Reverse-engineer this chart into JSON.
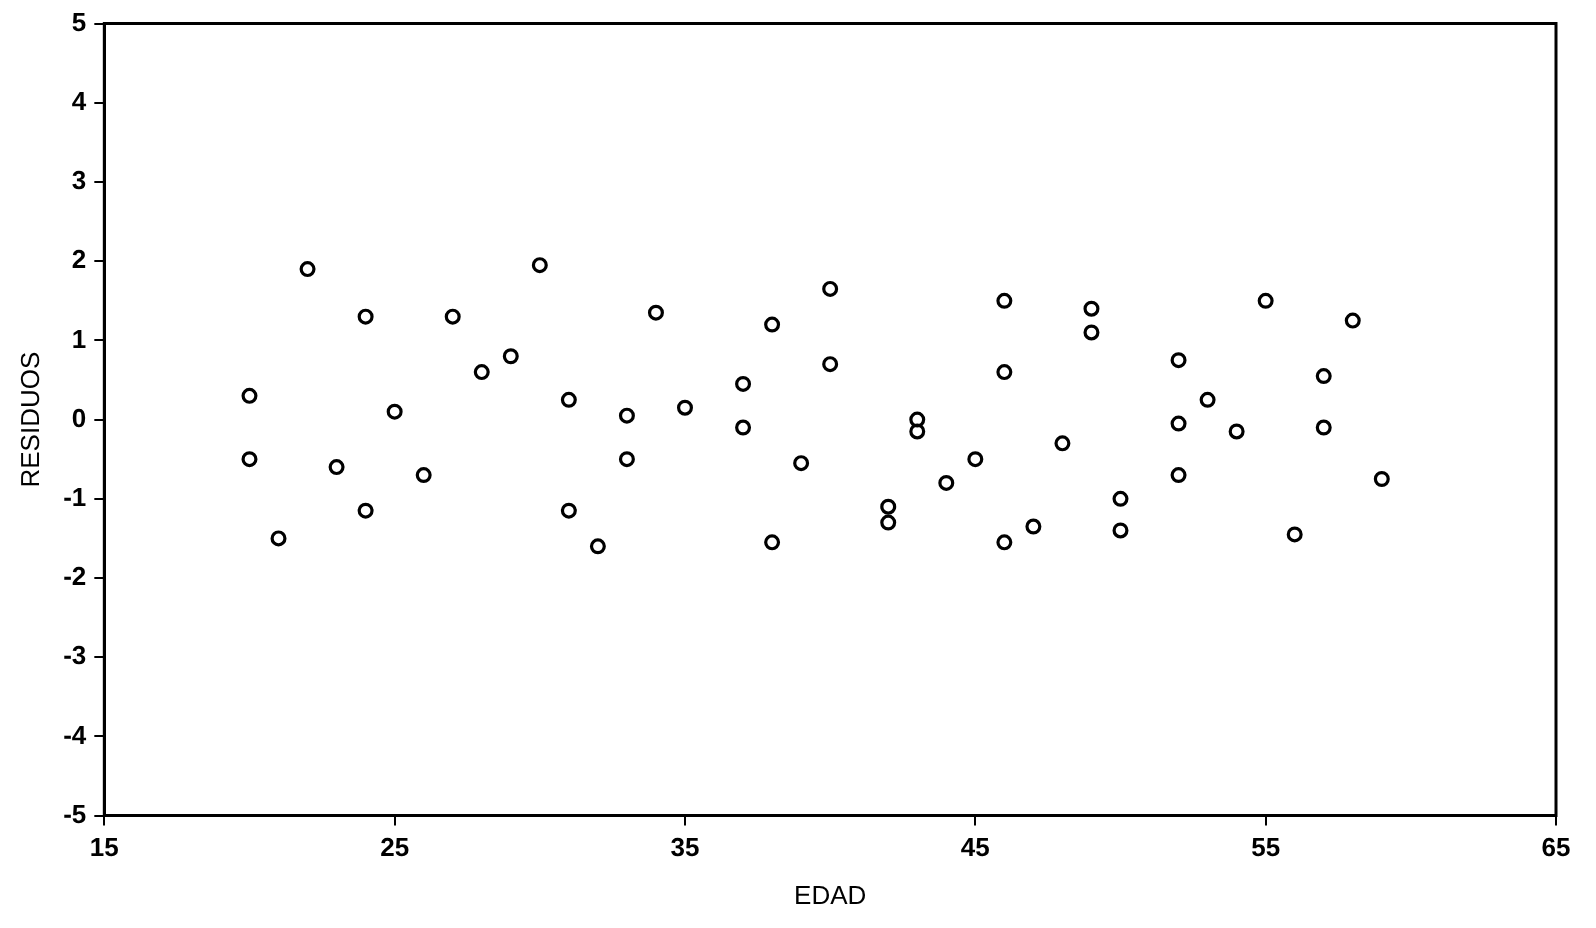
{
  "chart_data": {
    "type": "scatter",
    "xlabel": "EDAD",
    "ylabel": "RESIDUOS",
    "x": [
      20,
      20,
      21,
      22,
      23,
      24,
      24,
      25,
      26,
      27,
      28,
      29,
      30,
      31,
      31,
      32,
      33,
      33,
      34,
      35,
      37,
      37,
      38,
      38,
      39,
      40,
      40,
      42,
      42,
      43,
      43,
      44,
      45,
      46,
      46,
      46,
      47,
      48,
      49,
      49,
      50,
      50,
      52,
      52,
      52,
      53,
      54,
      55,
      56,
      57,
      57,
      58,
      59
    ],
    "values": [
      0.3,
      -0.5,
      -1.5,
      1.9,
      -0.6,
      1.3,
      -1.15,
      0.1,
      -0.7,
      1.3,
      0.6,
      0.8,
      1.95,
      0.25,
      -1.15,
      -1.6,
      0.05,
      -0.5,
      1.35,
      0.15,
      0.45,
      -0.1,
      1.2,
      -1.55,
      -0.55,
      1.65,
      0.7,
      -1.1,
      -1.3,
      0.0,
      -0.15,
      -0.8,
      -0.5,
      1.5,
      0.6,
      -1.55,
      -1.35,
      -0.3,
      1.4,
      1.1,
      -1.0,
      -1.4,
      0.75,
      -0.05,
      -0.7,
      0.25,
      -0.15,
      1.5,
      -1.45,
      0.55,
      -0.1,
      1.25,
      -0.75
    ],
    "color": "#000000",
    "marker": "circle",
    "xlim": [
      15,
      65
    ],
    "xticks": [
      15,
      25,
      35,
      45,
      55,
      65
    ],
    "ylim": [
      -5,
      5
    ],
    "yticks": [
      -5,
      -4,
      -3,
      -2,
      -1,
      0,
      1,
      2,
      3,
      4,
      5
    ],
    "grid": false,
    "legend": false
  }
}
